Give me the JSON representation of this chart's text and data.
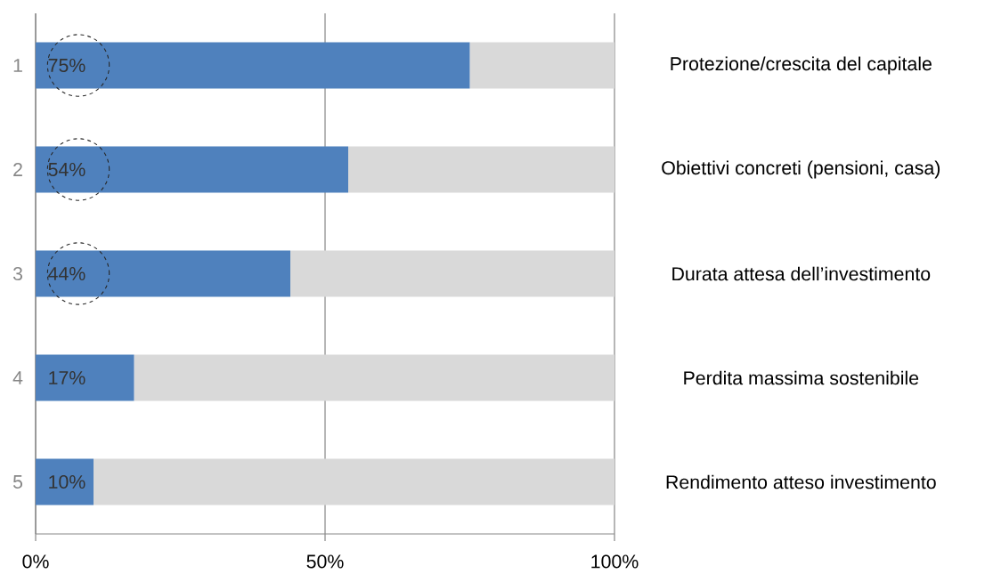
{
  "chart_data": {
    "type": "bar",
    "orientation": "horizontal",
    "stacked": true,
    "categories": [
      "1",
      "2",
      "3",
      "4",
      "5"
    ],
    "series": [
      {
        "color": "#4f81bd",
        "values": [
          75,
          54,
          44,
          17,
          10
        ],
        "value_labels": [
          "75%",
          "54%",
          "44%",
          "17%",
          "10%"
        ]
      },
      {
        "color": "#d9d9d9",
        "values": [
          25,
          46,
          56,
          83,
          90
        ]
      }
    ],
    "xlim": [
      0,
      100
    ],
    "xticks": [
      {
        "value": 0,
        "label": "0%"
      },
      {
        "value": 50,
        "label": "50%"
      },
      {
        "value": 100,
        "label": "100%"
      }
    ],
    "grid": "x",
    "annotations": [
      "Protezione/crescita del capitale",
      "Obiettivi concreti (pensioni, casa)",
      "Durata attesa dell’investimento",
      "Perdita massima sostenibile",
      "Rendimento atteso investimento"
    ]
  }
}
